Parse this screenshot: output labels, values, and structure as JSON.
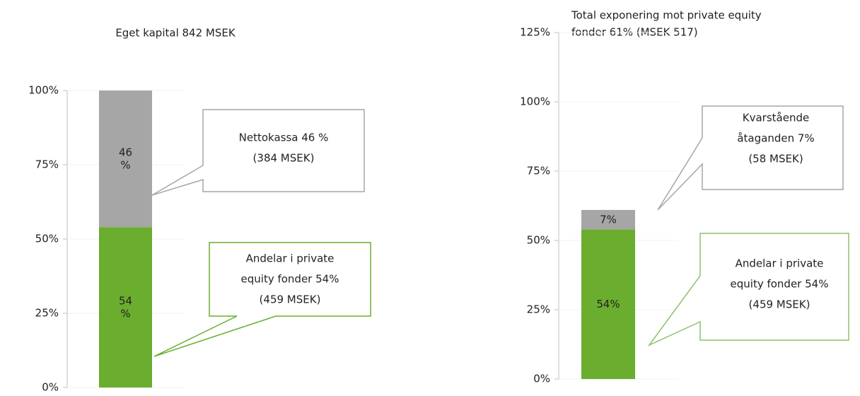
{
  "chart_data": [
    {
      "type": "stacked_bar",
      "title": "Eget kapital 842 MSEK",
      "ylim": [
        0,
        100
      ],
      "yticks": [
        {
          "value": 0,
          "label": "0%"
        },
        {
          "value": 25,
          "label": "25%"
        },
        {
          "value": 50,
          "label": "50%"
        },
        {
          "value": 75,
          "label": "75%"
        },
        {
          "value": 100,
          "label": "100%"
        }
      ],
      "grid": true,
      "series": [
        {
          "color": "#6aad2f",
          "values": [
            54
          ],
          "value_labels": [
            "54 %"
          ]
        },
        {
          "color": "#a6a6a6",
          "values": [
            46
          ],
          "value_labels": [
            "46 %"
          ]
        }
      ],
      "annotations": [
        [
          "Andelar i private",
          "equity fonder 54%",
          "(459 MSEK)"
        ],
        [
          "Nettokassa 46 %",
          "(384 MSEK)"
        ]
      ]
    },
    {
      "type": "stacked_bar",
      "title": [
        "Total exponering mot private equity",
        "fonder 61% (MSEK 517)"
      ],
      "ylim": [
        0,
        125
      ],
      "yticks": [
        {
          "value": 0,
          "label": "0%"
        },
        {
          "value": 25,
          "label": "25%"
        },
        {
          "value": 50,
          "label": "50%"
        },
        {
          "value": 75,
          "label": "75%"
        },
        {
          "value": 100,
          "label": "100%"
        },
        {
          "value": 125,
          "label": "125%"
        }
      ],
      "grid": true,
      "series": [
        {
          "color": "#6aad2f",
          "values": [
            54
          ],
          "value_labels": [
            "54%"
          ]
        },
        {
          "color": "#a6a6a6",
          "values": [
            7
          ],
          "value_labels": [
            "7%"
          ]
        }
      ],
      "annotations": [
        [
          "Andelar i private",
          "equity fonder 54%",
          "(459 MSEK)"
        ],
        [
          "Kvarstående",
          "åtaganden 7%",
          "(58 MSEK)"
        ]
      ]
    }
  ]
}
